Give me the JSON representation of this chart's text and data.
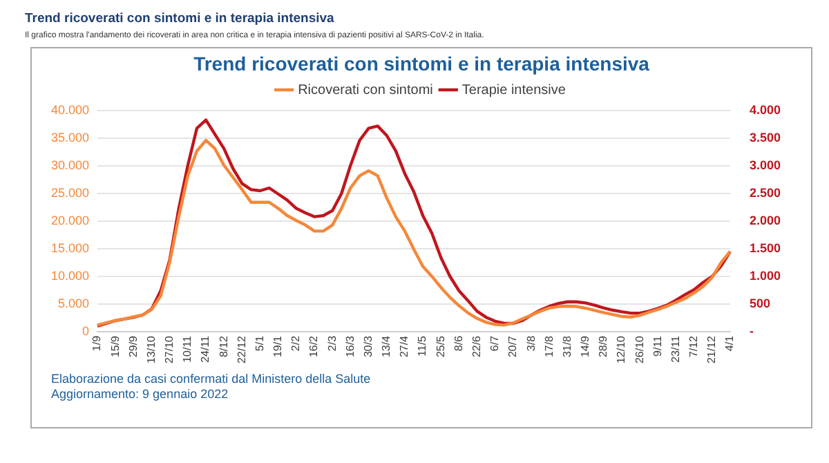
{
  "chart_data": {
    "type": "line",
    "title": "Trend ricoverati con sintomi e in terapia intensiva",
    "subtitle": "Il grafico mostra l'andamento dei ricoverati in area non critica e in terapia intensiva di pazienti positivi al SARS-CoV-2 in Italia.",
    "annotations": [
      "Trend ricoverati con sintomi e in terapia intensiva",
      "Elaborazione da casi confermati dal Ministero della Salute",
      "Aggiornamento: 9 gennaio 2022"
    ],
    "categories": [
      "1/9",
      null,
      "15/9",
      null,
      "29/9",
      null,
      "13/10",
      null,
      "27/10",
      null,
      "10/11",
      null,
      "24/11",
      null,
      "8/12",
      null,
      "22/12",
      null,
      "5/1",
      null,
      "19/1",
      null,
      "2/2",
      null,
      "16/2",
      null,
      "2/3",
      null,
      "16/3",
      null,
      "30/3",
      null,
      "13/4",
      null,
      "27/4",
      null,
      "11/5",
      null,
      "25/5",
      null,
      "8/6",
      null,
      "22/6",
      null,
      "6/7",
      null,
      "20/7",
      null,
      "3/8",
      null,
      "17/8",
      null,
      "31/8",
      null,
      "14/9",
      null,
      "28/9",
      null,
      "12/10",
      null,
      "26/10",
      null,
      "9/11",
      null,
      "23/11",
      null,
      "7/12",
      null,
      "21/12",
      null,
      "4/1"
    ],
    "series": [
      {
        "name": "Ricoverati con sintomi",
        "color": "#f4883a",
        "values": [
          1200,
          1600,
          2000,
          2300,
          2700,
          3000,
          4000,
          6500,
          12600,
          20800,
          28200,
          32700,
          34600,
          33100,
          30100,
          27900,
          25700,
          23400,
          23400,
          23400,
          22300,
          21000,
          20100,
          19300,
          18200,
          18200,
          19300,
          22300,
          26000,
          28200,
          29100,
          28200,
          24200,
          20800,
          18200,
          14900,
          11800,
          10000,
          8000,
          6200,
          4700,
          3400,
          2400,
          1700,
          1300,
          1200,
          1600,
          2300,
          3000,
          3700,
          4300,
          4550,
          4600,
          4550,
          4250,
          3850,
          3450,
          3100,
          2750,
          2650,
          2950,
          3500,
          4000,
          4600,
          5300,
          6000,
          7000,
          8200,
          9800,
          12500,
          14500
        ]
      },
      {
        "name": "Terapie intensive",
        "color": "#c0161e",
        "axis": "y2",
        "values": [
          100,
          150,
          200,
          230,
          260,
          300,
          410,
          740,
          1300,
          2230,
          3010,
          3680,
          3830,
          3570,
          3310,
          2950,
          2680,
          2570,
          2550,
          2600,
          2490,
          2380,
          2230,
          2150,
          2080,
          2100,
          2190,
          2500,
          3010,
          3460,
          3680,
          3720,
          3550,
          3270,
          2860,
          2530,
          2100,
          1780,
          1340,
          1000,
          740,
          560,
          370,
          260,
          190,
          150,
          150,
          200,
          300,
          390,
          460,
          510,
          540,
          540,
          520,
          480,
          430,
          390,
          360,
          335,
          335,
          370,
          420,
          480,
          570,
          670,
          760,
          890,
          1000,
          1190,
          1450
        ]
      }
    ],
    "ylim": [
      0,
      40000
    ],
    "yticks": [
      0,
      {
        "value": 5000,
        "label": "5.000"
      },
      {
        "value": 10000,
        "label": "10.000"
      },
      {
        "value": 15000,
        "label": "15.000"
      },
      {
        "value": 20000,
        "label": "20.000"
      },
      {
        "value": 25000,
        "label": "25.000"
      },
      {
        "value": 30000,
        "label": "30.000"
      },
      {
        "value": 35000,
        "label": "35.000"
      },
      {
        "value": 40000,
        "label": "40.000"
      }
    ],
    "y2lim": [
      0,
      4000
    ],
    "y2ticks": [
      {
        "value": 0,
        "label": "-"
      },
      500,
      {
        "value": 1000,
        "label": "1.000"
      },
      {
        "value": 1500,
        "label": "1.500"
      },
      {
        "value": 2000,
        "label": "2.000"
      },
      {
        "value": 2500,
        "label": "2.500"
      },
      {
        "value": 3000,
        "label": "3.000"
      },
      {
        "value": 3500,
        "label": "3.500"
      },
      {
        "value": 4000,
        "label": "4.000"
      }
    ],
    "grid": "y",
    "legend": "top",
    "marker": "none",
    "line_style": "solid"
  }
}
